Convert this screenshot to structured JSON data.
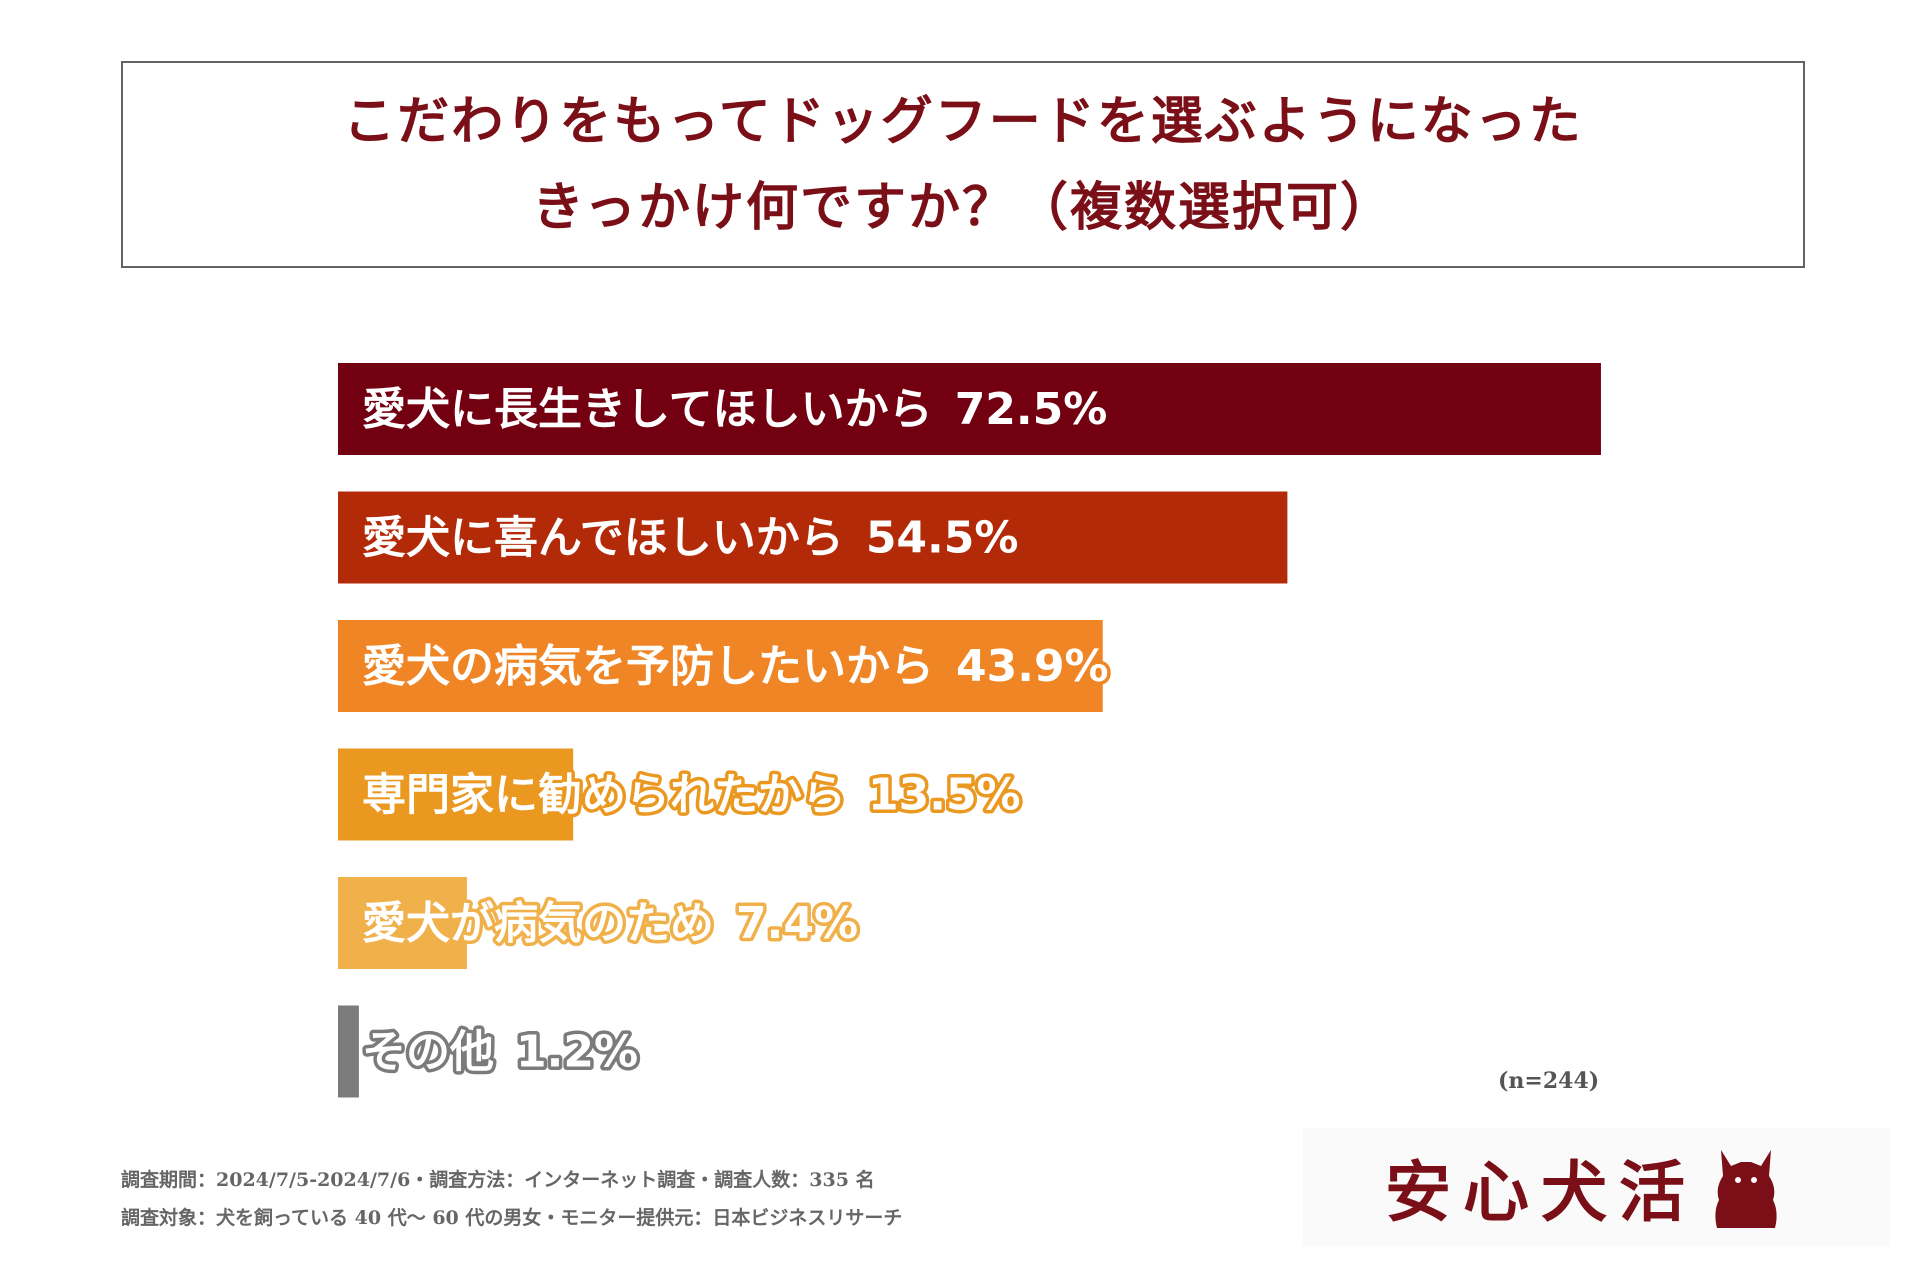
{
  "title": {
    "line1": "こだわりをもってドッグフードを選ぶようになった",
    "line2": "きっかけ何ですか？（複数選択可）"
  },
  "chart_data": {
    "type": "bar",
    "orientation": "horizontal",
    "title": "こだわりをもってドッグフードを選ぶようになったきっかけ何ですか？（複数選択可）",
    "categories": [
      "愛犬に長生きしてほしいから",
      "愛犬に喜んでほしいから",
      "愛犬の病気を予防したいから",
      "専門家に勧められたから",
      "愛犬が病気のため",
      "その他"
    ],
    "values": [
      72.5,
      54.5,
      43.9,
      13.5,
      7.4,
      1.2
    ],
    "value_labels": [
      "72.5%",
      "54.5%",
      "43.9%",
      "13.5%",
      "7.4%",
      "1.2%"
    ],
    "colors": [
      "#720010",
      "#b32a08",
      "#ef8524",
      "#ea981f",
      "#f0b04a",
      "#7b7b7b"
    ],
    "unit": "%",
    "xlim": [
      0,
      100
    ],
    "grid": false
  },
  "sample_size": "(n=244)",
  "footnotes": {
    "line1": "調査期間：2024/7/5-2024/7/6・調査方法：インターネット調査・調査人数：335 名",
    "line2": "調査対象：犬を飼っている 40 代〜 60 代の男女・モニター提供元：日本ビジネスリサーチ"
  },
  "logo": {
    "text": "安心犬活",
    "icon": "dog-silhouette-icon"
  }
}
